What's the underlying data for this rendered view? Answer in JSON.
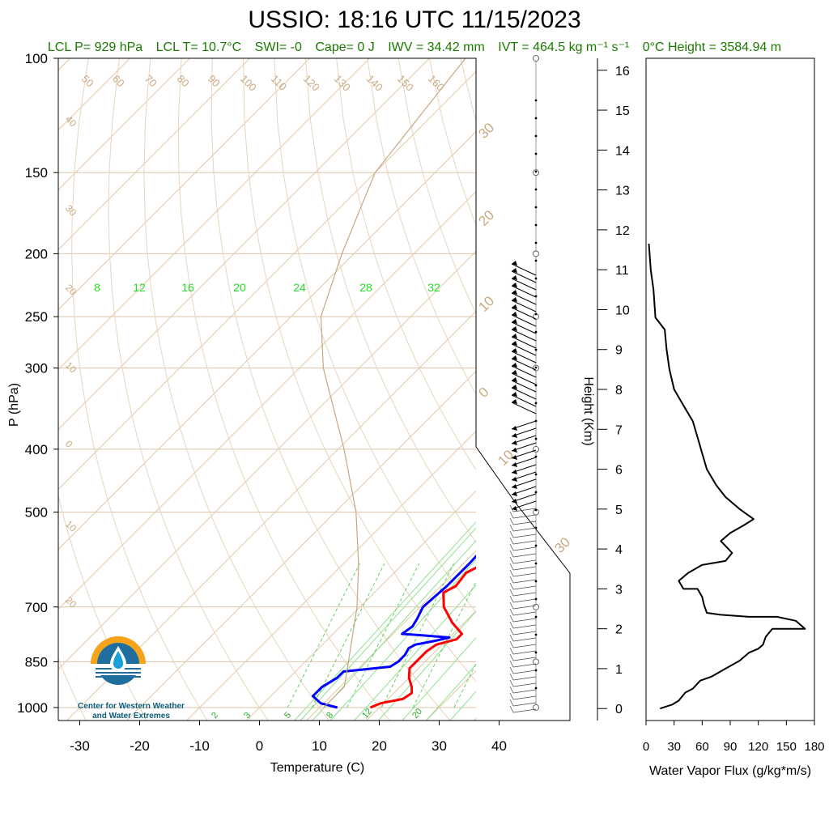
{
  "header": {
    "title": "USSIO: 18:16 UTC 11/15/2023",
    "stats": [
      "LCL P= 929 hPa",
      "LCL T= 10.7°C",
      "SWI= -0",
      "Cape= 0 J",
      "IWV = 34.42 mm",
      "IVT = 464.5 kg m⁻¹ s⁻¹",
      "0°C Height = 3584.94 m"
    ]
  },
  "logo": {
    "line1": "Center for Western Weather",
    "line2": "and Water Extremes",
    "colors": {
      "sun": "#f5a31a",
      "water": "#1e6f9f",
      "drop": "#1aa0d8"
    }
  },
  "chart_data": [
    {
      "type": "line",
      "name_hint": "skew-T log-P sounding",
      "xlabel": "Temperature (C)",
      "ylabel": "P (hPa)",
      "x_ticks": [
        -30,
        -20,
        -10,
        0,
        10,
        20,
        30,
        40
      ],
      "y_ticks": [
        100,
        150,
        200,
        250,
        300,
        400,
        500,
        700,
        850,
        1000
      ],
      "ylim": [
        1050,
        100
      ],
      "skew_deg_per_decade": 45,
      "isotherm_labels": [
        -60,
        -50,
        -40,
        -30,
        -20,
        -10,
        0,
        10,
        20,
        30,
        40,
        50,
        60,
        70,
        80,
        90,
        100,
        110,
        120,
        130,
        140,
        150,
        160
      ],
      "mixing_ratio_labels": [
        "8",
        "12",
        "16",
        "20",
        "24",
        "28",
        "32"
      ],
      "mixing_ratio_bottom_labels": [
        "2",
        "3",
        "5",
        "8",
        "12",
        "20"
      ],
      "series": [
        {
          "name": "temperature",
          "color": "#ff0000",
          "points": [
            [
              1000,
              18.5
            ],
            [
              985,
              19.5
            ],
            [
              970,
              22.5
            ],
            [
              950,
              23
            ],
            [
              930,
              22
            ],
            [
              900,
              20
            ],
            [
              870,
              18.5
            ],
            [
              850,
              18.5
            ],
            [
              820,
              18.5
            ],
            [
              800,
              19
            ],
            [
              785,
              21.5
            ],
            [
              770,
              21.5
            ],
            [
              740,
              18
            ],
            [
              700,
              14
            ],
            [
              665,
              11.5
            ],
            [
              650,
              12.5
            ],
            [
              620,
              12
            ],
            [
              600,
              13.5
            ],
            [
              550,
              13.2
            ],
            [
              520,
              12.7
            ],
            [
              500,
              12.2
            ],
            [
              450,
              10.3
            ],
            [
              420,
              8.3
            ],
            [
              400,
              6.5
            ],
            [
              350,
              -0.3
            ],
            [
              300,
              -7.5
            ],
            [
              260,
              -15
            ],
            [
              230,
              -22
            ],
            [
              215,
              -25.5
            ],
            [
              205,
              -28
            ]
          ]
        },
        {
          "name": "dewpoint",
          "color": "#0000ff",
          "points": [
            [
              1000,
              13
            ],
            [
              985,
              9.5
            ],
            [
              960,
              7
            ],
            [
              930,
              7
            ],
            [
              900,
              8
            ],
            [
              880,
              8
            ],
            [
              865,
              15
            ],
            [
              850,
              15.5
            ],
            [
              830,
              15.5
            ],
            [
              810,
              15
            ],
            [
              800,
              15.5
            ],
            [
              790,
              18
            ],
            [
              780,
              20
            ],
            [
              775,
              16
            ],
            [
              770,
              11.5
            ],
            [
              750,
              12
            ],
            [
              730,
              11.5
            ],
            [
              700,
              10.5
            ],
            [
              650,
              11
            ],
            [
              600,
              11
            ],
            [
              570,
              10.8
            ],
            [
              550,
              10.5
            ],
            [
              520,
              8.5
            ],
            [
              500,
              7.5
            ],
            [
              480,
              6.8
            ],
            [
              460,
              5.7
            ],
            [
              440,
              2.5
            ],
            [
              420,
              1
            ],
            [
              400,
              0
            ],
            [
              380,
              -3
            ],
            [
              360,
              -5
            ],
            [
              340,
              -7
            ],
            [
              320,
              -10
            ],
            [
              300,
              -13
            ],
            [
              290,
              -15
            ],
            [
              285,
              -14.5
            ],
            [
              275,
              -17
            ],
            [
              260,
              -21
            ],
            [
              245,
              -25
            ],
            [
              230,
              -28
            ],
            [
              215,
              -31.5
            ],
            [
              205,
              -34
            ]
          ]
        },
        {
          "name": "parcel",
          "color": "#c8a882",
          "points": [
            [
              1000,
              10.7
            ],
            [
              929,
              10.7
            ],
            [
              850,
              7.2
            ],
            [
              700,
              -0.5
            ],
            [
              600,
              -7.5
            ],
            [
              500,
              -16.5
            ],
            [
              400,
              -29
            ],
            [
              300,
              -46
            ],
            [
              250,
              -55
            ],
            [
              200,
              -62
            ],
            [
              150,
              -70
            ],
            [
              100,
              -74
            ]
          ]
        }
      ]
    },
    {
      "type": "line",
      "xlabel": "Water Vapor Flux (g/kg*m/s)",
      "ylabel": "Height (Km)",
      "x_ticks": [
        0,
        30,
        60,
        90,
        120,
        150,
        180
      ],
      "y_ticks": [
        0,
        1,
        2,
        3,
        4,
        5,
        6,
        7,
        8,
        9,
        10,
        11,
        12,
        13,
        14,
        15,
        16
      ],
      "xlim": [
        0,
        180
      ],
      "ylim": [
        -0.3,
        16.3
      ],
      "series": [
        {
          "name": "water-vapor-flux",
          "color": "#000000",
          "points": [
            [
              15,
              0
            ],
            [
              28,
              0.1
            ],
            [
              35,
              0.2
            ],
            [
              42,
              0.4
            ],
            [
              50,
              0.5
            ],
            [
              58,
              0.7
            ],
            [
              70,
              0.8
            ],
            [
              85,
              1.0
            ],
            [
              100,
              1.2
            ],
            [
              110,
              1.4
            ],
            [
              120,
              1.5
            ],
            [
              125,
              1.6
            ],
            [
              128,
              1.8
            ],
            [
              135,
              2.0
            ],
            [
              150,
              2.0
            ],
            [
              170,
              2.0
            ],
            [
              160,
              2.2
            ],
            [
              140,
              2.3
            ],
            [
              110,
              2.3
            ],
            [
              80,
              2.35
            ],
            [
              65,
              2.4
            ],
            [
              62,
              2.6
            ],
            [
              60,
              2.8
            ],
            [
              55,
              3.0
            ],
            [
              40,
              3.0
            ],
            [
              35,
              3.2
            ],
            [
              45,
              3.4
            ],
            [
              60,
              3.6
            ],
            [
              85,
              3.7
            ],
            [
              92,
              3.9
            ],
            [
              88,
              4.0
            ],
            [
              80,
              4.2
            ],
            [
              90,
              4.4
            ],
            [
              105,
              4.6
            ],
            [
              115,
              4.75
            ],
            [
              100,
              5.0
            ],
            [
              85,
              5.3
            ],
            [
              75,
              5.6
            ],
            [
              65,
              6.0
            ],
            [
              60,
              6.4
            ],
            [
              55,
              6.8
            ],
            [
              50,
              7.2
            ],
            [
              40,
              7.6
            ],
            [
              30,
              8.0
            ],
            [
              25,
              8.5
            ],
            [
              22,
              9.0
            ],
            [
              20,
              9.5
            ],
            [
              10,
              9.8
            ],
            [
              8,
              10.5
            ],
            [
              5,
              11.0
            ],
            [
              3,
              11.65
            ]
          ]
        }
      ]
    }
  ]
}
